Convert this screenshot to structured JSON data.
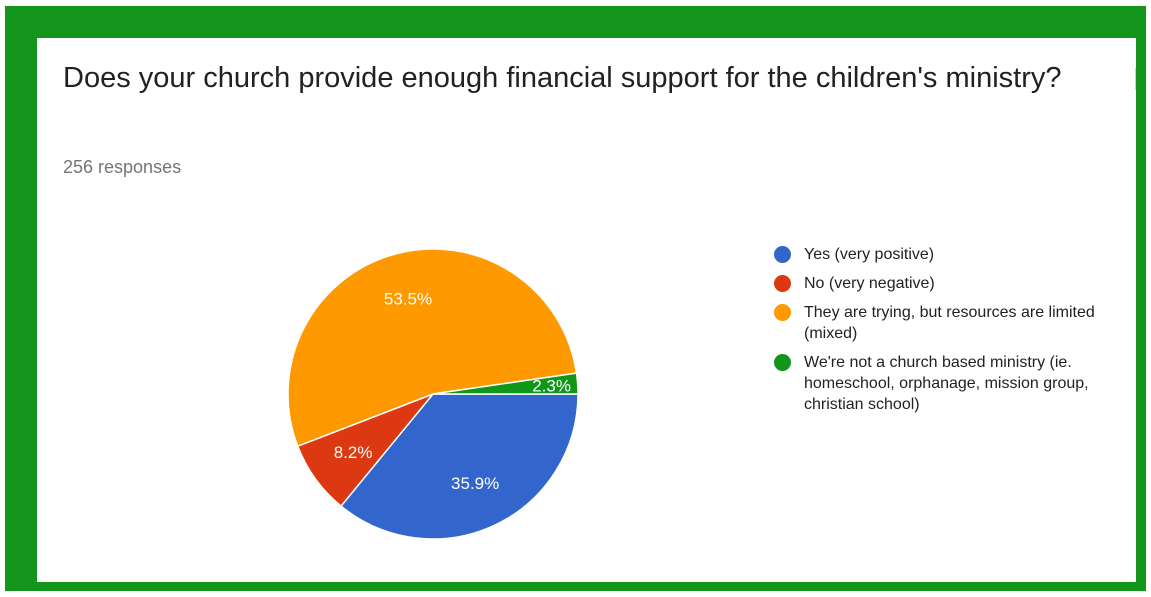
{
  "header": {
    "title": "Does your church provide enough financial support for the children's ministry?",
    "response_count": "256 responses"
  },
  "chart_data": {
    "type": "pie",
    "title": "Does your church provide enough financial support for the children's ministry?",
    "slices": [
      {
        "label": "Yes (very positive)",
        "value": 35.9,
        "display": "35.9%",
        "color": "#3366cc"
      },
      {
        "label": "No (very negative)",
        "value": 8.2,
        "display": "8.2%",
        "color": "#dc3912"
      },
      {
        "label": "They are trying, but resources are limited (mixed)",
        "value": 53.5,
        "display": "53.5%",
        "color": "#ff9900"
      },
      {
        "label": "We're not a church based ministry (ie. homeschool, orphanage, mission group, christian school)",
        "value": 2.3,
        "display": "2.3%",
        "color": "#109618"
      }
    ],
    "legend_position": "right"
  },
  "colors": {
    "frame": "#14961c",
    "background": "#ffffff"
  }
}
